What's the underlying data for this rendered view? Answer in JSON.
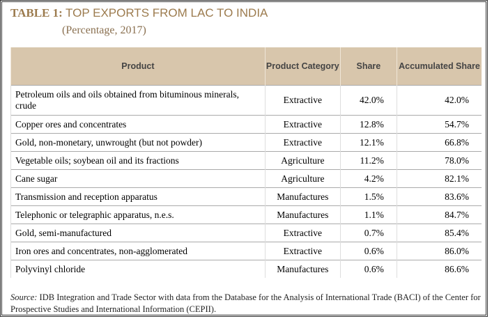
{
  "header": {
    "label": "TABLE 1:",
    "title": "TOP EXPORTS FROM LAC TO INDIA",
    "subtitle": "(Percentage, 2017)"
  },
  "table": {
    "columns": [
      "Product",
      "Product Category",
      "Share",
      "Accumulated Share"
    ],
    "rows": [
      [
        "Petroleum oils and oils obtained from bituminous minerals, crude",
        "Extractive",
        "42.0%",
        "42.0%"
      ],
      [
        "Copper ores and concentrates",
        "Extractive",
        "12.8%",
        "54.7%"
      ],
      [
        "Gold, non-monetary, unwrought (but not powder)",
        "Extractive",
        "12.1%",
        "66.8%"
      ],
      [
        "Vegetable oils; soybean oil and its fractions",
        "Agriculture",
        "11.2%",
        "78.0%"
      ],
      [
        "Cane sugar",
        "Agriculture",
        "4.2%",
        "82.1%"
      ],
      [
        "Transmission and reception apparatus",
        "Manufactures",
        "1.5%",
        "83.6%"
      ],
      [
        "Telephonic or telegraphic apparatus, n.e.s.",
        "Manufactures",
        "1.1%",
        "84.7%"
      ],
      [
        "Gold, semi-manufactured",
        "Extractive",
        "0.7%",
        "85.4%"
      ],
      [
        "Iron ores and concentrates, non-agglomerated",
        "Extractive",
        "0.6%",
        "86.0%"
      ],
      [
        "Polyvinyl chloride",
        "Manufactures",
        "0.6%",
        "86.6%"
      ]
    ]
  },
  "source": {
    "label": "Source:",
    "text": "IDB Integration and Trade Sector with data from the Database for the Analysis of International Trade (BACI) of the Center for Prospective Studies and International Information (CEPII)."
  }
}
